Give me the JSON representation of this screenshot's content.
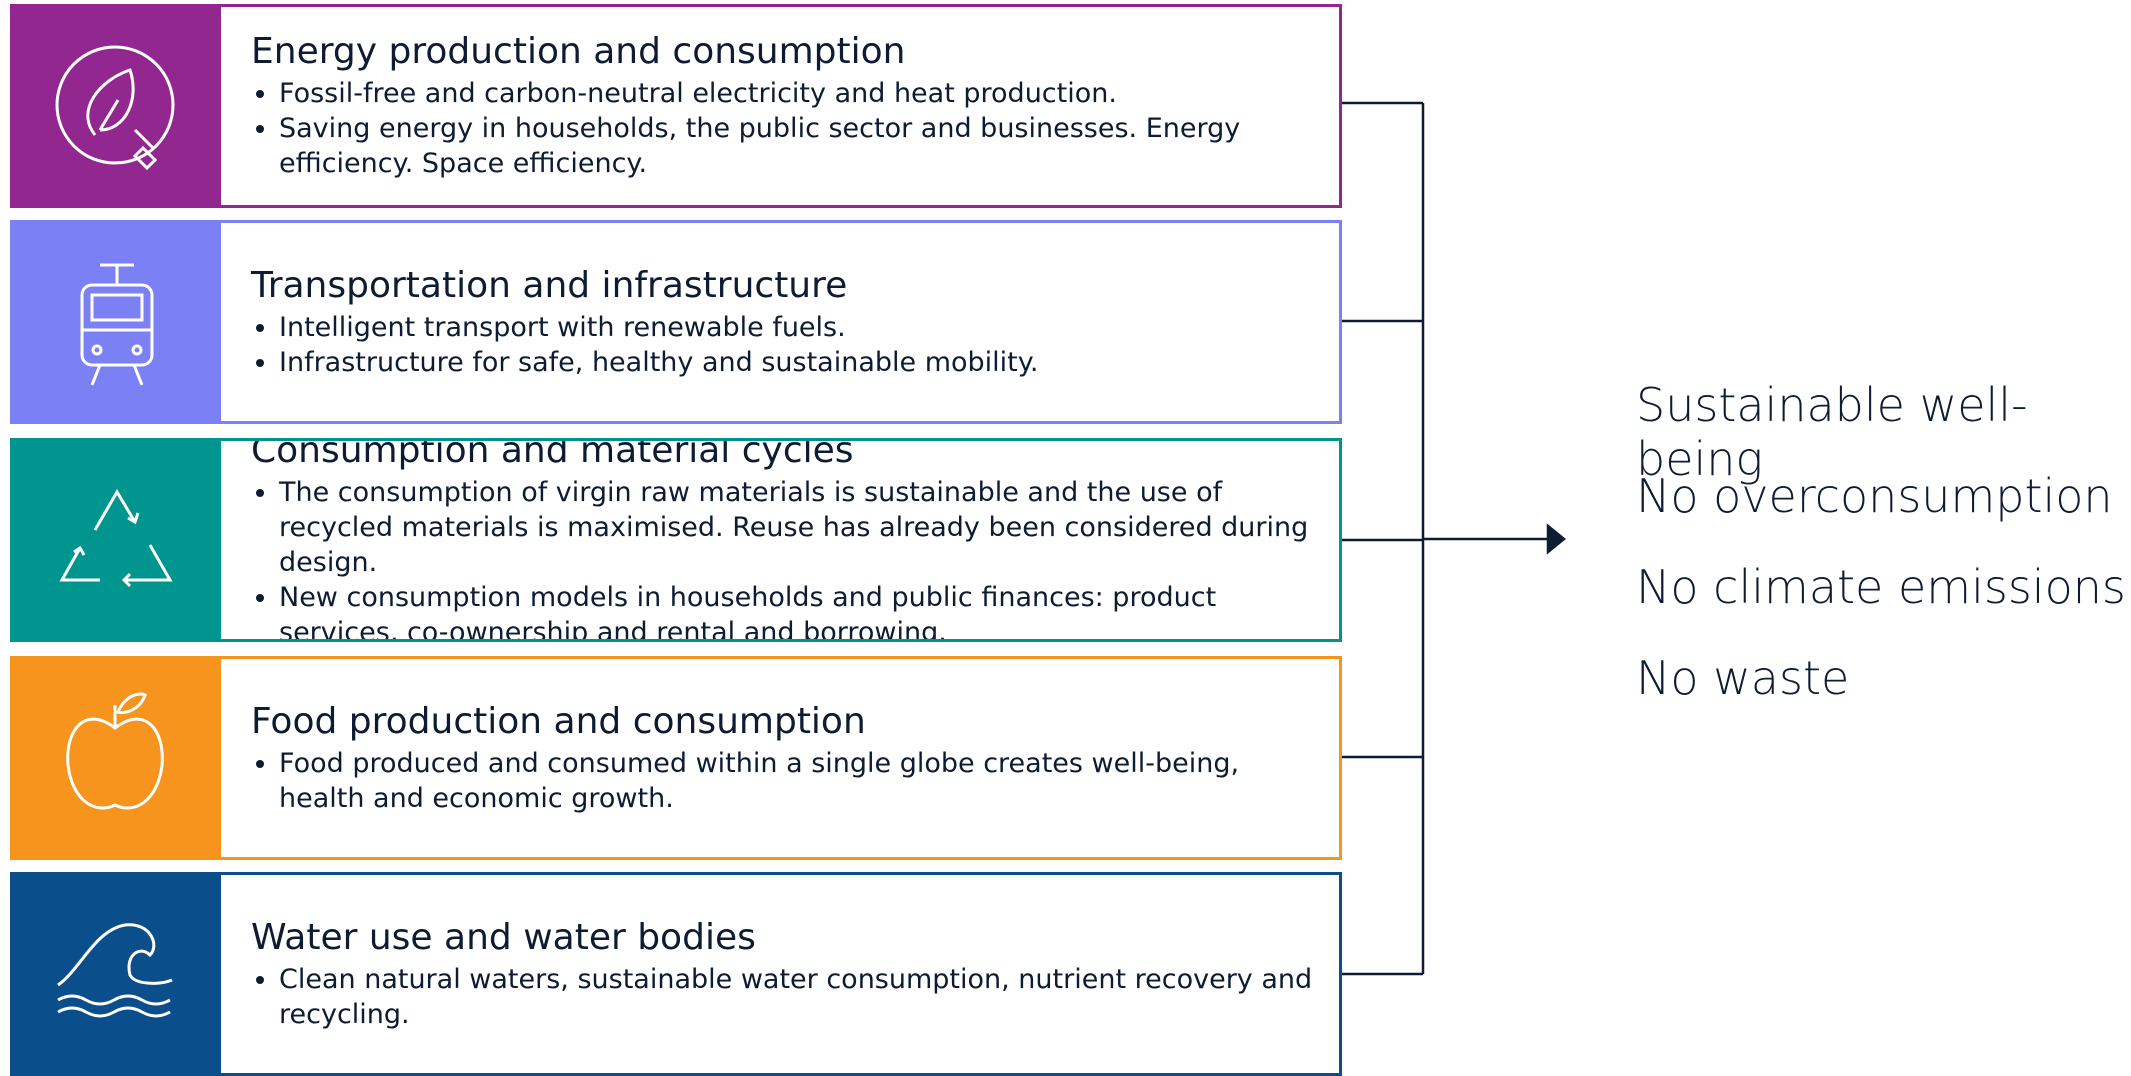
{
  "sections": [
    {
      "title": "Energy production and consumption",
      "color": "#92278f",
      "bullets": [
        "Fossil-free and carbon-neutral electricity and heat production.",
        "Saving energy in households, the public sector and businesses. Energy efficiency. Space efficiency."
      ]
    },
    {
      "title": "Transportation and infrastructure",
      "color": "#7b80f5",
      "bullets": [
        "Intelligent transport with renewable fuels.",
        "Infrastructure for safe, healthy and sustainable mobility."
      ]
    },
    {
      "title": "Consumption and material cycles",
      "color": "#00958f",
      "bullets": [
        "The consumption of virgin raw materials is sustainable and the use of recycled materials is maximised. Reuse has already been considered during design.",
        "New consumption models in households and public finances: product services, co-ownership and rental and borrowing."
      ]
    },
    {
      "title": "Food production and consumption",
      "color": "#f7941d",
      "bullets": [
        "Food produced and consumed within a single globe creates well-being, health and economic growth."
      ]
    },
    {
      "title": "Water use and water bodies",
      "color": "#0a4f8c",
      "bullets": [
        "Clean natural waters, sustainable water consumption, nutrient recovery and recycling."
      ]
    }
  ],
  "outcomes": [
    "Sustainable well-being",
    "No overconsumption",
    "No climate emissions",
    "No waste"
  ]
}
